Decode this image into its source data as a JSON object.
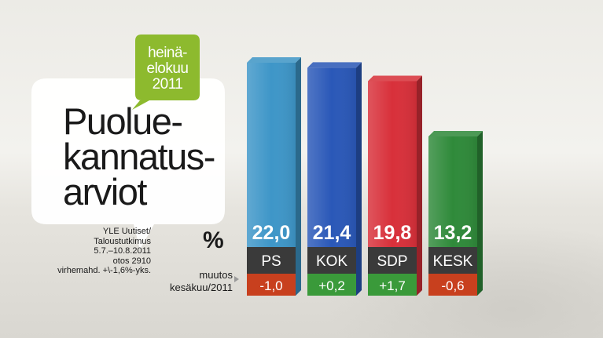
{
  "title": {
    "lines": [
      "Puolue-",
      "kannatus-",
      "arviot"
    ]
  },
  "period_badge": {
    "lines": [
      "heinä-",
      "elokuu",
      "2011"
    ]
  },
  "source_note": {
    "lines": [
      "YLE Uutiset/",
      "Taloustutkimus",
      "5.7.–10.8.2011",
      "otos 2910",
      "virhemahd. +\\-1,6%-yks."
    ]
  },
  "unit_label": "%",
  "change_label": {
    "lines": [
      "muutos",
      "kesäkuu/2011"
    ]
  },
  "colors": {
    "PS": "#3e96c8",
    "KOK": "#2a58b8",
    "SDP": "#d8303a",
    "KESK": "#2f8a3a",
    "label_band": "#3a3a3a",
    "change_negative": "#c8401e",
    "change_positive": "#3a9a3a",
    "bubble_green": "#8dba2e"
  },
  "chart_data": {
    "type": "bar",
    "categories": [
      "PS",
      "KOK",
      "SDP",
      "KESK"
    ],
    "values": [
      22.0,
      21.4,
      19.8,
      13.2
    ],
    "value_labels": [
      "22,0",
      "21,4",
      "19,8",
      "13,2"
    ],
    "changes": [
      -1.0,
      0.2,
      1.7,
      -0.6
    ],
    "change_labels": [
      "-1,0",
      "+0,2",
      "+1,7",
      "-0,6"
    ],
    "title": "Puolue-kannatus-arviot",
    "xlabel": "",
    "ylabel": "%",
    "ylim": [
      0,
      22.0
    ],
    "grid": false
  }
}
